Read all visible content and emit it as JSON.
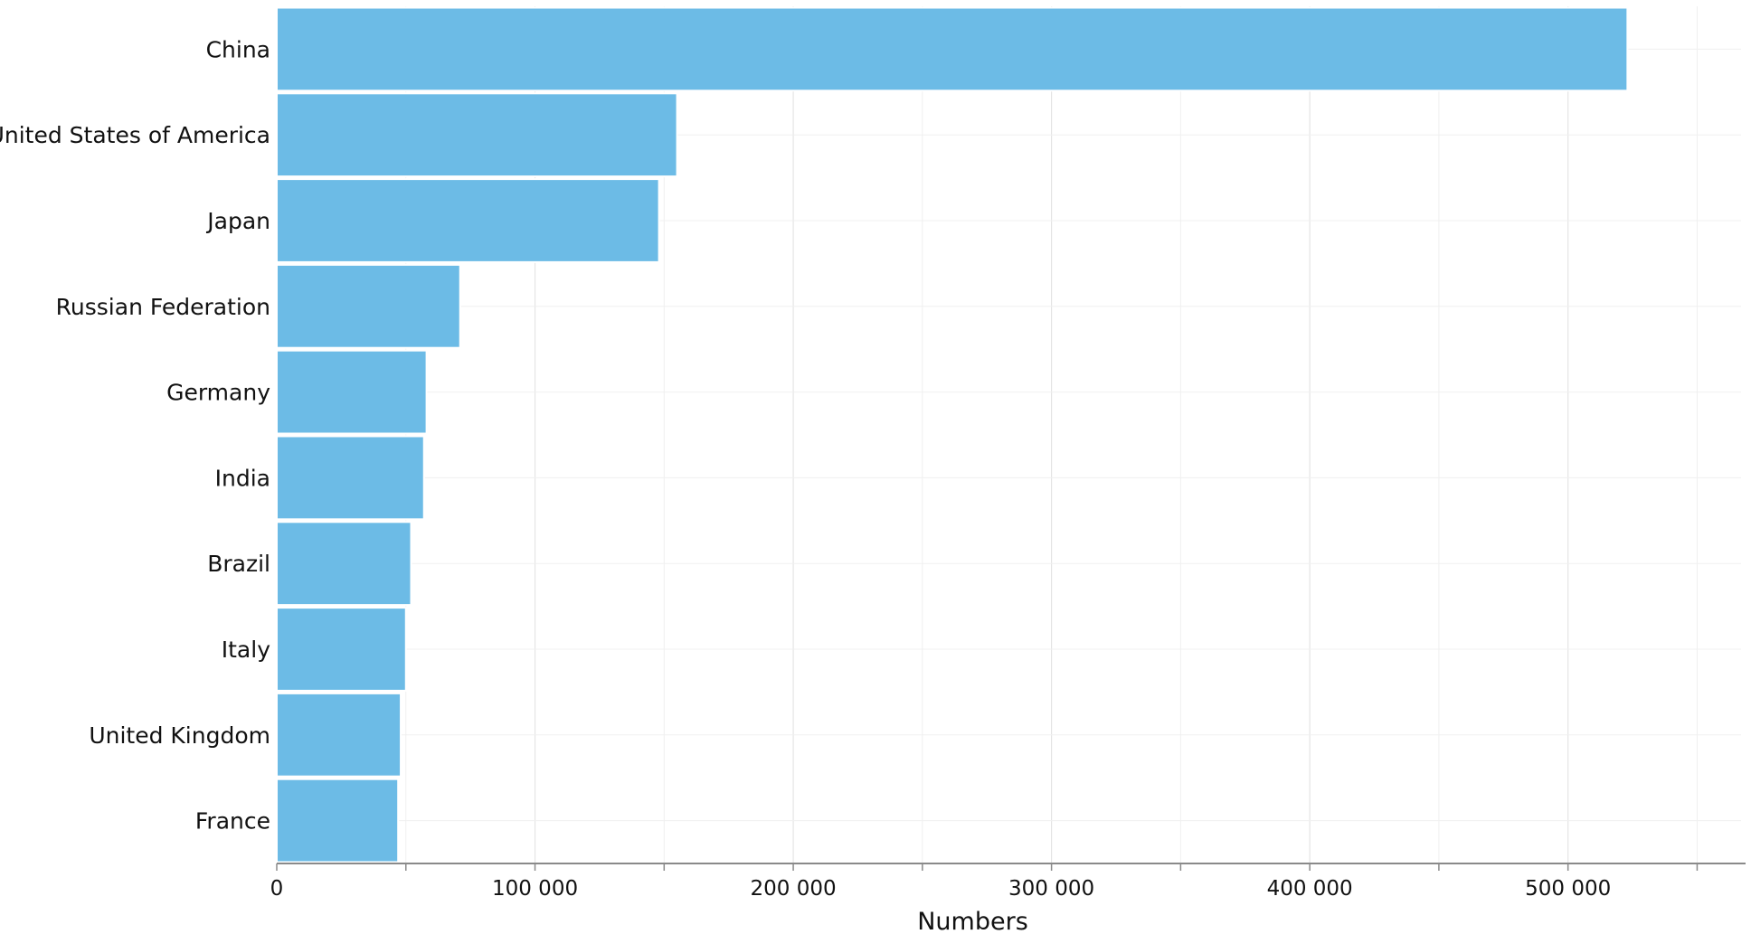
{
  "chart_data": {
    "type": "bar",
    "orientation": "horizontal",
    "categories": [
      "China",
      "United States of America",
      "Japan",
      "Russian Federation",
      "Germany",
      "India",
      "Brazil",
      "Italy",
      "United Kingdom",
      "France"
    ],
    "values": [
      523000,
      155000,
      148000,
      71000,
      58000,
      57000,
      52000,
      50000,
      48000,
      47000
    ],
    "title": "",
    "xlabel": "Numbers",
    "ylabel": "",
    "xlim": [
      0,
      560000
    ],
    "xticks": [
      0,
      100000,
      200000,
      300000,
      400000,
      500000
    ],
    "xtick_labels": [
      "0",
      "100 000",
      "200 000",
      "300 000",
      "400 000",
      "500 000"
    ],
    "grid": true,
    "bar_color": "#6cbbe6"
  }
}
